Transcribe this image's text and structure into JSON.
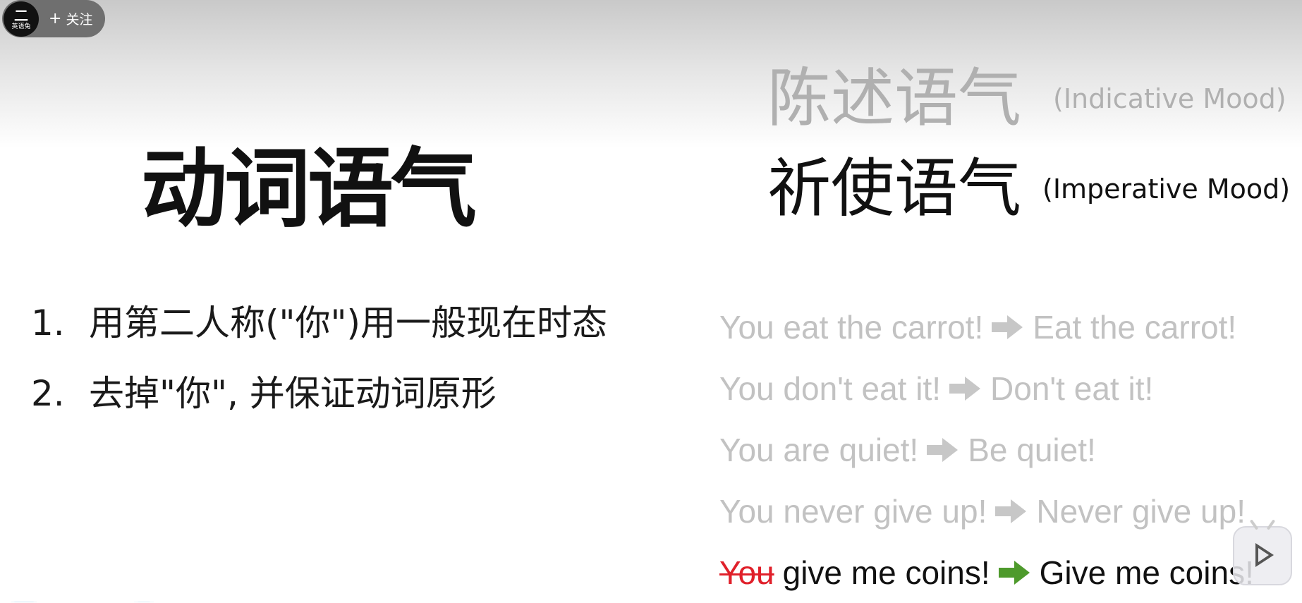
{
  "follow": {
    "avatar_text": "英语兔",
    "avatar_glyph": "二",
    "plus": "+",
    "label": "关注"
  },
  "title": "动词语气",
  "rules": [
    {
      "num": "1.",
      "text": "用第二人称(\"你\")用一般现在时态"
    },
    {
      "num": "2.",
      "text": "去掉\"你\", 并保证动词原形"
    }
  ],
  "moods": {
    "indicative": {
      "zh": "陈述语气",
      "en": "(Indicative Mood)"
    },
    "imperative": {
      "zh": "祈使语气",
      "en": "(Imperative Mood)"
    }
  },
  "examples": [
    {
      "before": "You eat the carrot!",
      "after": "Eat the carrot!"
    },
    {
      "before": "You don't eat it!",
      "after": "Don't eat it!"
    },
    {
      "before": "You are quiet!",
      "after": "Be quiet!"
    },
    {
      "before": "You never give up!",
      "after": "Never give up!"
    },
    {
      "struck": "You",
      "before": "give me coins!",
      "after": "Give me coins!"
    }
  ],
  "colors": {
    "faded_text": "#c2c2c2",
    "active_text": "#111111",
    "strike": "#e0202a",
    "arrow_active": "#4e9a2c",
    "arrow_faded": "#c7c7c7"
  },
  "icons": {
    "arrow": "right-arrow-icon",
    "play": "play-icon"
  }
}
